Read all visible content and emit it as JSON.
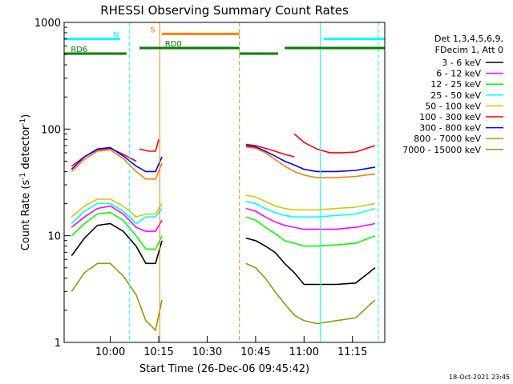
{
  "chart_data": {
    "type": "line",
    "title": "RHESSI Observing Summary Count Rates",
    "xlabel": "Start Time (26-Dec-06 09:45:42)",
    "ylabel": "Count Rate (s",
    "ylabel_sup": "-1",
    "ylabel_tail": " detector",
    "ylabel_end": ")",
    "y_scale": "log",
    "ylim": [
      1,
      1000
    ],
    "xlim": [
      "09:45:42",
      "11:25:00"
    ],
    "x_ticks": [
      "10:00",
      "10:15",
      "10:30",
      "10:45",
      "11:00",
      "11:15"
    ],
    "y_ticks": [
      "1",
      "10",
      "100",
      "1000"
    ],
    "legend": {
      "placement": "right",
      "header": [
        "Det 1,3,4,5,6,9,",
        "FDecim 1, Att 0"
      ]
    },
    "series": [
      {
        "name": "3 - 6 keV",
        "color": "#000000",
        "segments": [
          {
            "x": [
              "09:48",
              "09:52",
              "09:56",
              "10:00",
              "10:04",
              "10:08",
              "10:11",
              "10:14",
              "10:16"
            ],
            "y": [
              6.5,
              9.5,
              12.5,
              13,
              11,
              8,
              5.5,
              5.5,
              9
            ]
          },
          {
            "x": [
              "10:42",
              "10:45",
              "10:48",
              "10:51",
              "10:54",
              "10:57",
              "11:00",
              "11:04",
              "11:10",
              "11:16",
              "11:22"
            ],
            "y": [
              9.5,
              9,
              8,
              7,
              5.5,
              4.5,
              3.5,
              3.5,
              3.5,
              3.6,
              5
            ]
          }
        ]
      },
      {
        "name": "6 - 12 keV",
        "color": "#ff00ff",
        "segments": [
          {
            "x": [
              "09:48",
              "09:52",
              "09:56",
              "10:00",
              "10:04",
              "10:08",
              "10:11",
              "10:14",
              "10:16"
            ],
            "y": [
              12,
              15,
              18,
              19,
              16,
              12,
              11,
              11,
              14
            ]
          },
          {
            "x": [
              "10:42",
              "10:45",
              "10:48",
              "10:51",
              "10:54",
              "10:57",
              "11:00",
              "11:04",
              "11:10",
              "11:16",
              "11:22"
            ],
            "y": [
              18,
              17,
              15,
              13.5,
              12.5,
              12,
              11.5,
              11.5,
              11.5,
              12,
              13
            ]
          }
        ]
      },
      {
        "name": "12 - 25 keV",
        "color": "#00ff00",
        "segments": [
          {
            "x": [
              "09:48",
              "09:52",
              "09:56",
              "10:00",
              "10:04",
              "10:08",
              "10:11",
              "10:14",
              "10:16"
            ],
            "y": [
              10,
              13,
              16,
              16.5,
              14,
              10,
              7.5,
              7.5,
              10
            ]
          },
          {
            "x": [
              "10:42",
              "10:45",
              "10:48",
              "10:51",
              "10:54",
              "10:57",
              "11:00",
              "11:04",
              "11:10",
              "11:16",
              "11:22"
            ],
            "y": [
              15,
              14,
              12,
              10.5,
              9,
              8.5,
              8,
              8,
              8.2,
              8.5,
              10
            ]
          }
        ]
      },
      {
        "name": "25 - 50 keV",
        "color": "#00ffff",
        "segments": [
          {
            "x": [
              "09:48",
              "09:52",
              "09:56",
              "10:00",
              "10:04",
              "10:08",
              "10:11",
              "10:14",
              "10:16"
            ],
            "y": [
              13,
              17,
              20,
              20,
              17,
              13,
              15,
              15,
              18
            ]
          },
          {
            "x": [
              "10:42",
              "10:45",
              "10:48",
              "10:51",
              "10:54",
              "10:57",
              "11:00",
              "11:04",
              "11:10",
              "11:16",
              "11:22"
            ],
            "y": [
              21,
              20,
              18,
              16.5,
              15.5,
              15,
              15,
              15,
              15.5,
              16,
              18
            ]
          }
        ]
      },
      {
        "name": "50 - 100 keV",
        "color": "#cccc00",
        "segments": [
          {
            "x": [
              "09:48",
              "09:52",
              "09:56",
              "10:00",
              "10:04",
              "10:08",
              "10:11",
              "10:14",
              "10:16"
            ],
            "y": [
              15,
              19,
              22,
              22,
              19,
              15,
              16,
              16,
              20
            ]
          },
          {
            "x": [
              "10:42",
              "10:45",
              "10:48",
              "10:51",
              "10:54",
              "10:57",
              "11:00",
              "11:04",
              "11:10",
              "11:16",
              "11:22"
            ],
            "y": [
              24,
              23,
              21,
              19,
              18,
              17.5,
              17.5,
              17.5,
              18,
              18.5,
              20
            ]
          }
        ]
      },
      {
        "name": "100 - 300 keV",
        "color": "#ff0000",
        "segments": [
          {
            "x": [
              "09:48",
              "09:52",
              "09:56",
              "10:00",
              "10:04",
              "10:08"
            ],
            "y": [
              45,
              55,
              64,
              66,
              58,
              50
            ]
          },
          {
            "x": [
              "10:09",
              "10:12",
              "10:14",
              "10:15"
            ],
            "y": [
              65,
              62,
              62,
              80
            ]
          },
          {
            "x": [
              "10:42",
              "10:45",
              "10:48",
              "10:51",
              "10:54",
              "10:57"
            ],
            "y": [
              72,
              70,
              66,
              62,
              58,
              55
            ]
          },
          {
            "x": [
              "10:57",
              "11:00",
              "11:04",
              "11:08",
              "11:12",
              "11:16",
              "11:22"
            ],
            "y": [
              90,
              75,
              65,
              60,
              60,
              61,
              70
            ]
          }
        ]
      },
      {
        "name": "300 - 800 keV",
        "color": "#0000ff",
        "segments": [
          {
            "x": [
              "09:48",
              "09:52",
              "09:56",
              "10:00",
              "10:04",
              "10:08",
              "10:11",
              "10:14",
              "10:16"
            ],
            "y": [
              42,
              55,
              65,
              67,
              56,
              45,
              40,
              40,
              55
            ]
          },
          {
            "x": [
              "10:42",
              "10:45",
              "10:48",
              "10:51",
              "10:54",
              "10:57",
              "11:00",
              "11:04",
              "11:10",
              "11:16",
              "11:22"
            ],
            "y": [
              70,
              68,
              62,
              56,
              50,
              46,
              42,
              40,
              40,
              41,
              44
            ]
          }
        ]
      },
      {
        "name": "800 - 7000 keV",
        "color": "#ff8000",
        "segments": [
          {
            "x": [
              "09:48",
              "09:52",
              "09:56",
              "10:00",
              "10:04",
              "10:08",
              "10:11",
              "10:14",
              "10:16"
            ],
            "y": [
              40,
              52,
              62,
              64,
              53,
              40,
              34,
              34,
              48
            ]
          },
          {
            "x": [
              "10:42",
              "10:45",
              "10:48",
              "10:51",
              "10:54",
              "10:57",
              "11:00",
              "11:04",
              "11:10",
              "11:16",
              "11:22"
            ],
            "y": [
              68,
              66,
              60,
              52,
              45,
              40,
              37,
              35,
              35,
              36,
              38
            ]
          }
        ]
      },
      {
        "name": "7000 - 15000 keV",
        "color": "#999900",
        "segments": [
          {
            "x": [
              "09:48",
              "09:52",
              "09:56",
              "10:00",
              "10:04",
              "10:08",
              "10:11",
              "10:14",
              "10:16"
            ],
            "y": [
              3,
              4.5,
              5.5,
              5.5,
              4.2,
              2.8,
              1.6,
              1.3,
              2.5
            ]
          },
          {
            "x": [
              "10:42",
              "10:45",
              "10:48",
              "10:51",
              "10:54",
              "10:57",
              "11:00",
              "11:04",
              "11:10",
              "11:16",
              "11:22"
            ],
            "y": [
              5.5,
              5,
              4,
              3,
              2.3,
              1.8,
              1.6,
              1.5,
              1.6,
              1.7,
              2.5
            ]
          }
        ]
      }
    ],
    "annotations": {
      "bars": [
        {
          "label": "N",
          "color": "#00ffff",
          "y": 700,
          "segments": [
            [
              "09:45:42",
              "10:03"
            ],
            [
              "11:06",
              "11:25"
            ]
          ]
        },
        {
          "label": "S",
          "color": "#ff8000",
          "y": 780,
          "segments": [
            [
              "10:16",
              "10:40"
            ]
          ]
        },
        {
          "label": "RD0",
          "color": "#008000",
          "y": 575,
          "segments": [
            [
              "10:09",
              "10:40"
            ],
            [
              "10:54",
              "11:25"
            ]
          ]
        },
        {
          "label": "RD6",
          "color": "#008000",
          "y": 510,
          "segments": [
            [
              "09:45:42",
              "10:05"
            ],
            [
              "10:40",
              "10:52"
            ]
          ]
        }
      ],
      "vlines": [
        {
          "x": "09:45:42",
          "color": "#00ffff",
          "style": "solid"
        },
        {
          "x": "10:06",
          "color": "#00ffff",
          "style": "dashed"
        },
        {
          "x": "10:15:20",
          "color": "#ff8000",
          "style": "solid"
        },
        {
          "x": "10:40",
          "color": "#ff8000",
          "style": "dashed"
        },
        {
          "x": "11:05",
          "color": "#00ffff",
          "style": "solid"
        },
        {
          "x": "11:23",
          "color": "#00ffff",
          "style": "dashed"
        }
      ]
    },
    "footer_date": "18-Oct-2021 23:45"
  }
}
